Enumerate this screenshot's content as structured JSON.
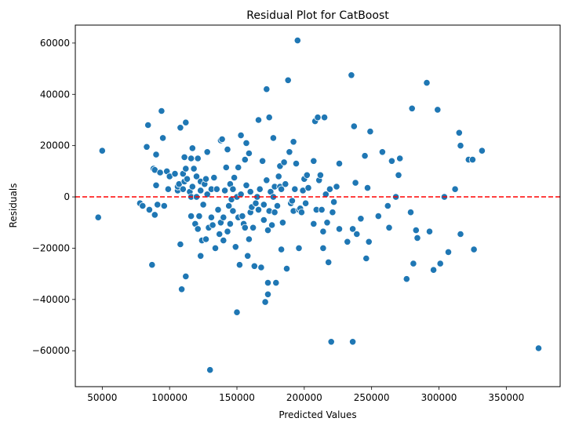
{
  "chart_data": {
    "type": "scatter",
    "title": "Residual Plot for CatBoost",
    "xlabel": "Predicted Values",
    "ylabel": "Residuals",
    "xlim": [
      30000,
      390000
    ],
    "ylim": [
      -74000,
      67000
    ],
    "xticks": [
      50000,
      100000,
      150000,
      200000,
      250000,
      300000,
      350000
    ],
    "xtick_labels": [
      "50000",
      "100000",
      "150000",
      "200000",
      "250000",
      "300000",
      "350000"
    ],
    "yticks": [
      -60000,
      -40000,
      -20000,
      0,
      20000,
      40000,
      60000
    ],
    "ytick_labels": [
      "−60000",
      "−40000",
      "−20000",
      "0",
      "20000",
      "40000",
      "60000"
    ],
    "grid": false,
    "point_color": "#1f77b4",
    "reference_line": {
      "y": 0,
      "style": "dashed",
      "color": "#ff0000"
    },
    "points": [
      [
        47000,
        -8000
      ],
      [
        50000,
        18000
      ],
      [
        78000,
        -2500
      ],
      [
        80000,
        -3500
      ],
      [
        83000,
        19500
      ],
      [
        84000,
        28000
      ],
      [
        85000,
        -5000
      ],
      [
        87000,
        -26500
      ],
      [
        88000,
        11000
      ],
      [
        89000,
        10500
      ],
      [
        89000,
        -7000
      ],
      [
        90000,
        4500
      ],
      [
        90000,
        16500
      ],
      [
        91000,
        -3000
      ],
      [
        93000,
        9500
      ],
      [
        94000,
        33500
      ],
      [
        95000,
        23000
      ],
      [
        96000,
        -3500
      ],
      [
        98000,
        10000
      ],
      [
        99000,
        3000
      ],
      [
        100000,
        8000
      ],
      [
        104000,
        9000
      ],
      [
        106000,
        2500
      ],
      [
        106000,
        4000
      ],
      [
        107000,
        5000
      ],
      [
        108000,
        -18500
      ],
      [
        108000,
        27000
      ],
      [
        109000,
        -36000
      ],
      [
        110000,
        9000
      ],
      [
        110000,
        3000
      ],
      [
        111000,
        15500
      ],
      [
        111000,
        6000
      ],
      [
        112000,
        -31000
      ],
      [
        112000,
        11000
      ],
      [
        112000,
        29000
      ],
      [
        113000,
        7000
      ],
      [
        115000,
        2000
      ],
      [
        116000,
        15000
      ],
      [
        116000,
        0
      ],
      [
        116000,
        -7500
      ],
      [
        117000,
        19000
      ],
      [
        117000,
        4000
      ],
      [
        118000,
        11000
      ],
      [
        119000,
        -10500
      ],
      [
        120000,
        0
      ],
      [
        120000,
        8000
      ],
      [
        121000,
        -12500
      ],
      [
        121000,
        15000
      ],
      [
        122000,
        -7500
      ],
      [
        123000,
        -23000
      ],
      [
        123000,
        2500
      ],
      [
        123000,
        6000
      ],
      [
        124000,
        -17000
      ],
      [
        125000,
        -3000
      ],
      [
        126000,
        5000
      ],
      [
        127000,
        7000
      ],
      [
        127000,
        -16500
      ],
      [
        128000,
        1000
      ],
      [
        128000,
        17500
      ],
      [
        129000,
        -12000
      ],
      [
        130000,
        -67500
      ],
      [
        131000,
        -8000
      ],
      [
        131000,
        3000
      ],
      [
        132000,
        -11000
      ],
      [
        133000,
        7500
      ],
      [
        134000,
        -20000
      ],
      [
        135000,
        3000
      ],
      [
        136000,
        -5000
      ],
      [
        137000,
        -14500
      ],
      [
        138000,
        22000
      ],
      [
        138000,
        -10000
      ],
      [
        139000,
        22500
      ],
      [
        140000,
        -8000
      ],
      [
        140000,
        -17000
      ],
      [
        141000,
        2500
      ],
      [
        142000,
        11500
      ],
      [
        143000,
        18500
      ],
      [
        143000,
        -13500
      ],
      [
        144000,
        -3500
      ],
      [
        145000,
        -10500
      ],
      [
        145000,
        5000
      ],
      [
        146000,
        -1000
      ],
      [
        147000,
        -5500
      ],
      [
        147000,
        3000
      ],
      [
        148000,
        7500
      ],
      [
        149000,
        -19500
      ],
      [
        150000,
        -45000
      ],
      [
        150000,
        0
      ],
      [
        151000,
        11500
      ],
      [
        151000,
        -8000
      ],
      [
        152000,
        -26500
      ],
      [
        153000,
        1000
      ],
      [
        153000,
        24000
      ],
      [
        154000,
        -7500
      ],
      [
        155000,
        -10500
      ],
      [
        156000,
        -12000
      ],
      [
        156000,
        14500
      ],
      [
        157000,
        21000
      ],
      [
        157000,
        4500
      ],
      [
        158000,
        -23000
      ],
      [
        159000,
        -16500
      ],
      [
        159000,
        17000
      ],
      [
        160000,
        2000
      ],
      [
        160000,
        -6000
      ],
      [
        161000,
        -4000
      ],
      [
        162000,
        -12000
      ],
      [
        163000,
        -27000
      ],
      [
        164000,
        -2500
      ],
      [
        165000,
        0
      ],
      [
        166000,
        30000
      ],
      [
        166000,
        -5000
      ],
      [
        167000,
        3000
      ],
      [
        168000,
        -27500
      ],
      [
        169000,
        14000
      ],
      [
        170000,
        -9000
      ],
      [
        170000,
        -3000
      ],
      [
        171000,
        -41000
      ],
      [
        172000,
        6500
      ],
      [
        172000,
        42000
      ],
      [
        173000,
        -38000
      ],
      [
        173000,
        -33500
      ],
      [
        173000,
        -13000
      ],
      [
        174000,
        31000
      ],
      [
        174000,
        -5500
      ],
      [
        175000,
        2000
      ],
      [
        176000,
        -11000
      ],
      [
        177000,
        0
      ],
      [
        177000,
        23000
      ],
      [
        178000,
        4000
      ],
      [
        178000,
        -6000
      ],
      [
        179000,
        -33500
      ],
      [
        180000,
        -3500
      ],
      [
        181000,
        8000
      ],
      [
        182000,
        12000
      ],
      [
        182000,
        4000
      ],
      [
        183000,
        -20500
      ],
      [
        183000,
        3000
      ],
      [
        184000,
        -10000
      ],
      [
        185000,
        13500
      ],
      [
        186000,
        5000
      ],
      [
        187000,
        -28000
      ],
      [
        188000,
        45500
      ],
      [
        189000,
        17500
      ],
      [
        190000,
        -2500
      ],
      [
        191000,
        -1500
      ],
      [
        192000,
        21500
      ],
      [
        192000,
        -5500
      ],
      [
        193000,
        3000
      ],
      [
        194000,
        13000
      ],
      [
        195000,
        61000
      ],
      [
        196000,
        -5000
      ],
      [
        196000,
        -20000
      ],
      [
        197000,
        -4500
      ],
      [
        198000,
        -6000
      ],
      [
        199000,
        2500
      ],
      [
        200000,
        7000
      ],
      [
        201000,
        -2500
      ],
      [
        202000,
        8500
      ],
      [
        203000,
        3500
      ],
      [
        207000,
        14000
      ],
      [
        207000,
        -10500
      ],
      [
        208000,
        29500
      ],
      [
        209000,
        -5000
      ],
      [
        210000,
        31000
      ],
      [
        211000,
        6500
      ],
      [
        212000,
        8500
      ],
      [
        213000,
        -5000
      ],
      [
        214000,
        -20000
      ],
      [
        214000,
        -13500
      ],
      [
        215000,
        31000
      ],
      [
        216000,
        1000
      ],
      [
        217000,
        -10000
      ],
      [
        218000,
        -25500
      ],
      [
        219000,
        3000
      ],
      [
        220000,
        -56500
      ],
      [
        221000,
        -6000
      ],
      [
        222000,
        -2000
      ],
      [
        224000,
        4000
      ],
      [
        226000,
        13000
      ],
      [
        226000,
        -12500
      ],
      [
        232000,
        -17500
      ],
      [
        235000,
        47500
      ],
      [
        236000,
        -12500
      ],
      [
        236000,
        -56500
      ],
      [
        237000,
        27500
      ],
      [
        238000,
        5500
      ],
      [
        239000,
        -14500
      ],
      [
        242000,
        -8500
      ],
      [
        245000,
        16000
      ],
      [
        246000,
        -24000
      ],
      [
        247000,
        3500
      ],
      [
        248000,
        -17500
      ],
      [
        249000,
        25500
      ],
      [
        255000,
        -7500
      ],
      [
        258000,
        17500
      ],
      [
        262000,
        -3500
      ],
      [
        263000,
        -12000
      ],
      [
        265000,
        14000
      ],
      [
        268000,
        0
      ],
      [
        270000,
        8500
      ],
      [
        271000,
        15000
      ],
      [
        276000,
        -32000
      ],
      [
        279000,
        -6000
      ],
      [
        280000,
        34500
      ],
      [
        281000,
        -26000
      ],
      [
        283000,
        -13000
      ],
      [
        284000,
        -16000
      ],
      [
        291000,
        44500
      ],
      [
        293000,
        -13500
      ],
      [
        296000,
        -28500
      ],
      [
        299000,
        34000
      ],
      [
        301000,
        -26000
      ],
      [
        304000,
        0
      ],
      [
        307000,
        -21500
      ],
      [
        312000,
        3000
      ],
      [
        315000,
        25000
      ],
      [
        316000,
        20000
      ],
      [
        316000,
        -14500
      ],
      [
        322000,
        14500
      ],
      [
        325000,
        14500
      ],
      [
        326000,
        -20500
      ],
      [
        332000,
        18000
      ],
      [
        374000,
        -59000
      ]
    ]
  }
}
